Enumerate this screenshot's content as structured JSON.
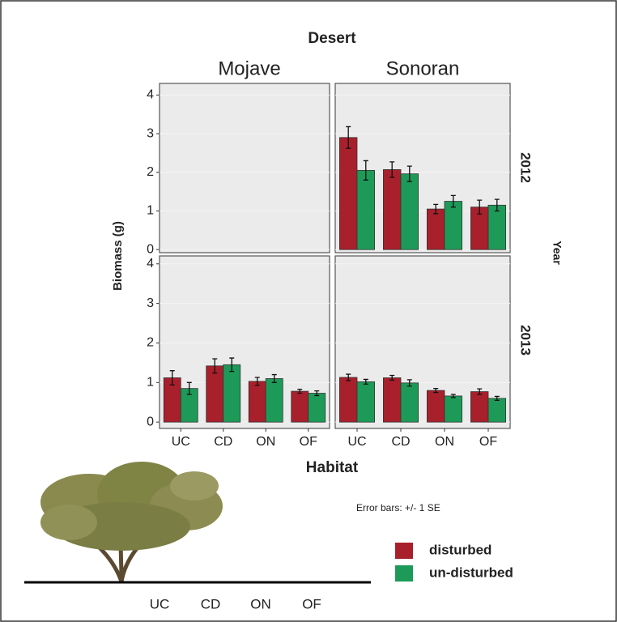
{
  "figure": {
    "title": "Desert",
    "columns": [
      "Mojave",
      "Sonoran"
    ],
    "rows": [
      "2012",
      "2013"
    ],
    "row_title": "Year",
    "x_label": "Habitat",
    "y_label": "Biomass (g)",
    "note": "Error bars: +/- 1 SE",
    "diagram_labels": [
      "UC",
      "CD",
      "ON",
      "OF"
    ]
  },
  "legend": {
    "names": [
      "disturbed",
      "un-disturbed"
    ],
    "colors": [
      "#a8202c",
      "#1e9a58"
    ]
  },
  "chart_data": [
    {
      "type": "bar",
      "ylim": [
        -0.08,
        4.3
      ],
      "yticks": [
        0,
        1,
        2,
        3,
        4
      ],
      "series": []
    },
    {
      "type": "bar",
      "ylim": [
        -0.08,
        4.3
      ],
      "yticks": [
        0,
        1,
        2,
        3,
        4
      ],
      "series": [
        {
          "values": [
            2.9,
            2.07,
            1.05,
            1.1
          ],
          "errors": [
            0.28,
            0.2,
            0.12,
            0.18
          ]
        },
        {
          "values": [
            2.05,
            1.96,
            1.25,
            1.15
          ],
          "errors": [
            0.25,
            0.2,
            0.15,
            0.15
          ]
        }
      ]
    },
    {
      "type": "bar",
      "ylim": [
        -0.16,
        4.2
      ],
      "yticks": [
        0,
        1,
        2,
        3,
        4
      ],
      "categories": [
        "UC",
        "CD",
        "ON",
        "OF"
      ],
      "series": [
        {
          "values": [
            1.12,
            1.42,
            1.03,
            0.78
          ],
          "errors": [
            0.18,
            0.18,
            0.1,
            0.05
          ]
        },
        {
          "values": [
            0.85,
            1.45,
            1.1,
            0.73
          ],
          "errors": [
            0.15,
            0.17,
            0.1,
            0.06
          ]
        }
      ]
    },
    {
      "type": "bar",
      "ylim": [
        -0.16,
        4.2
      ],
      "yticks": [
        0,
        1,
        2,
        3,
        4
      ],
      "categories": [
        "UC",
        "CD",
        "ON",
        "OF"
      ],
      "series": [
        {
          "values": [
            1.13,
            1.12,
            0.8,
            0.77
          ],
          "errors": [
            0.08,
            0.06,
            0.05,
            0.07
          ]
        },
        {
          "values": [
            1.02,
            0.99,
            0.66,
            0.6
          ],
          "errors": [
            0.06,
            0.08,
            0.04,
            0.05
          ]
        }
      ]
    }
  ]
}
